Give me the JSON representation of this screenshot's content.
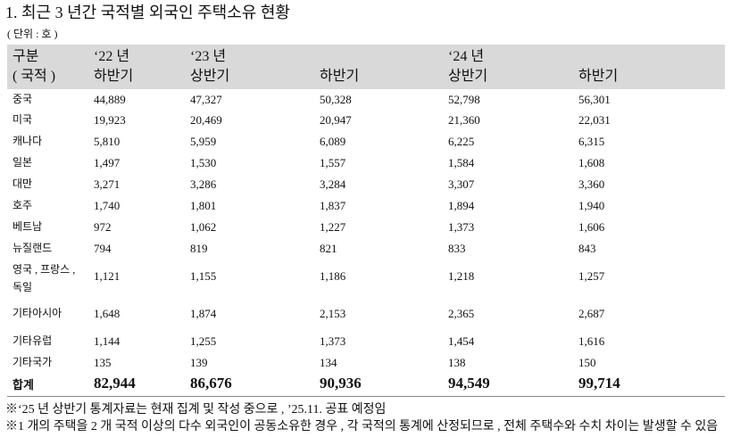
{
  "title": "1. 최근 3 년간 국적별 외국인 주택소유 현황",
  "unit": "( 단위 : 호 )",
  "table": {
    "header": {
      "category": [
        "구분",
        "( 국적 )"
      ],
      "years": [
        {
          "label": "‘22 년",
          "halves": [
            "하반기"
          ]
        },
        {
          "label": "‘23 년",
          "halves": [
            "상반기",
            "하반기"
          ]
        },
        {
          "label": "‘24 년",
          "halves": [
            "상반기",
            "하반기"
          ]
        }
      ]
    },
    "rows": [
      [
        "중국",
        "44,889",
        "47,327",
        "50,328",
        "52,798",
        "56,301"
      ],
      [
        "미국",
        "19,923",
        "20,469",
        "20,947",
        "21,360",
        "22,031"
      ],
      [
        "캐나다",
        "5,810",
        "5,959",
        "6,089",
        "6,225",
        "6,315"
      ],
      [
        "일본",
        "1,497",
        "1,530",
        "1,557",
        "1,584",
        "1,608"
      ],
      [
        "대만",
        "3,271",
        "3,286",
        "3,284",
        "3,307",
        "3,360"
      ],
      [
        "호주",
        "1,740",
        "1,801",
        "1,837",
        "1,894",
        "1,940"
      ],
      [
        "베트남",
        "972",
        "1,062",
        "1,227",
        "1,373",
        "1,606"
      ],
      [
        "뉴질랜드",
        "794",
        "819",
        "821",
        "833",
        "843"
      ],
      [
        "영국 , 프랑스 , 독일",
        "1,121",
        "1,155",
        "1,186",
        "1,218",
        "1,257"
      ],
      [
        "기타아시아",
        "1,648",
        "1,874",
        "2,153",
        "2,365",
        "2,687"
      ],
      [
        "기타유럽",
        "1,144",
        "1,255",
        "1,373",
        "1,454",
        "1,616"
      ],
      [
        "기타국가",
        "135",
        "139",
        "134",
        "138",
        "150"
      ]
    ],
    "total": [
      "합계",
      "82,944",
      "86,676",
      "90,936",
      "94,549",
      "99,714"
    ]
  },
  "notes": [
    "※‘25 년 상반기 통계자료는 현재 집계 및 작성 중으로 , ’25.11. 공표 예정임",
    "※1 개의 주택을 2 개 국적 이상의 다수 외국인이 공동소유한 경우 , 각 국적의 통계에 산정되므로 , 전체 주택수와 수치 차이는 발생할 수 있음"
  ]
}
